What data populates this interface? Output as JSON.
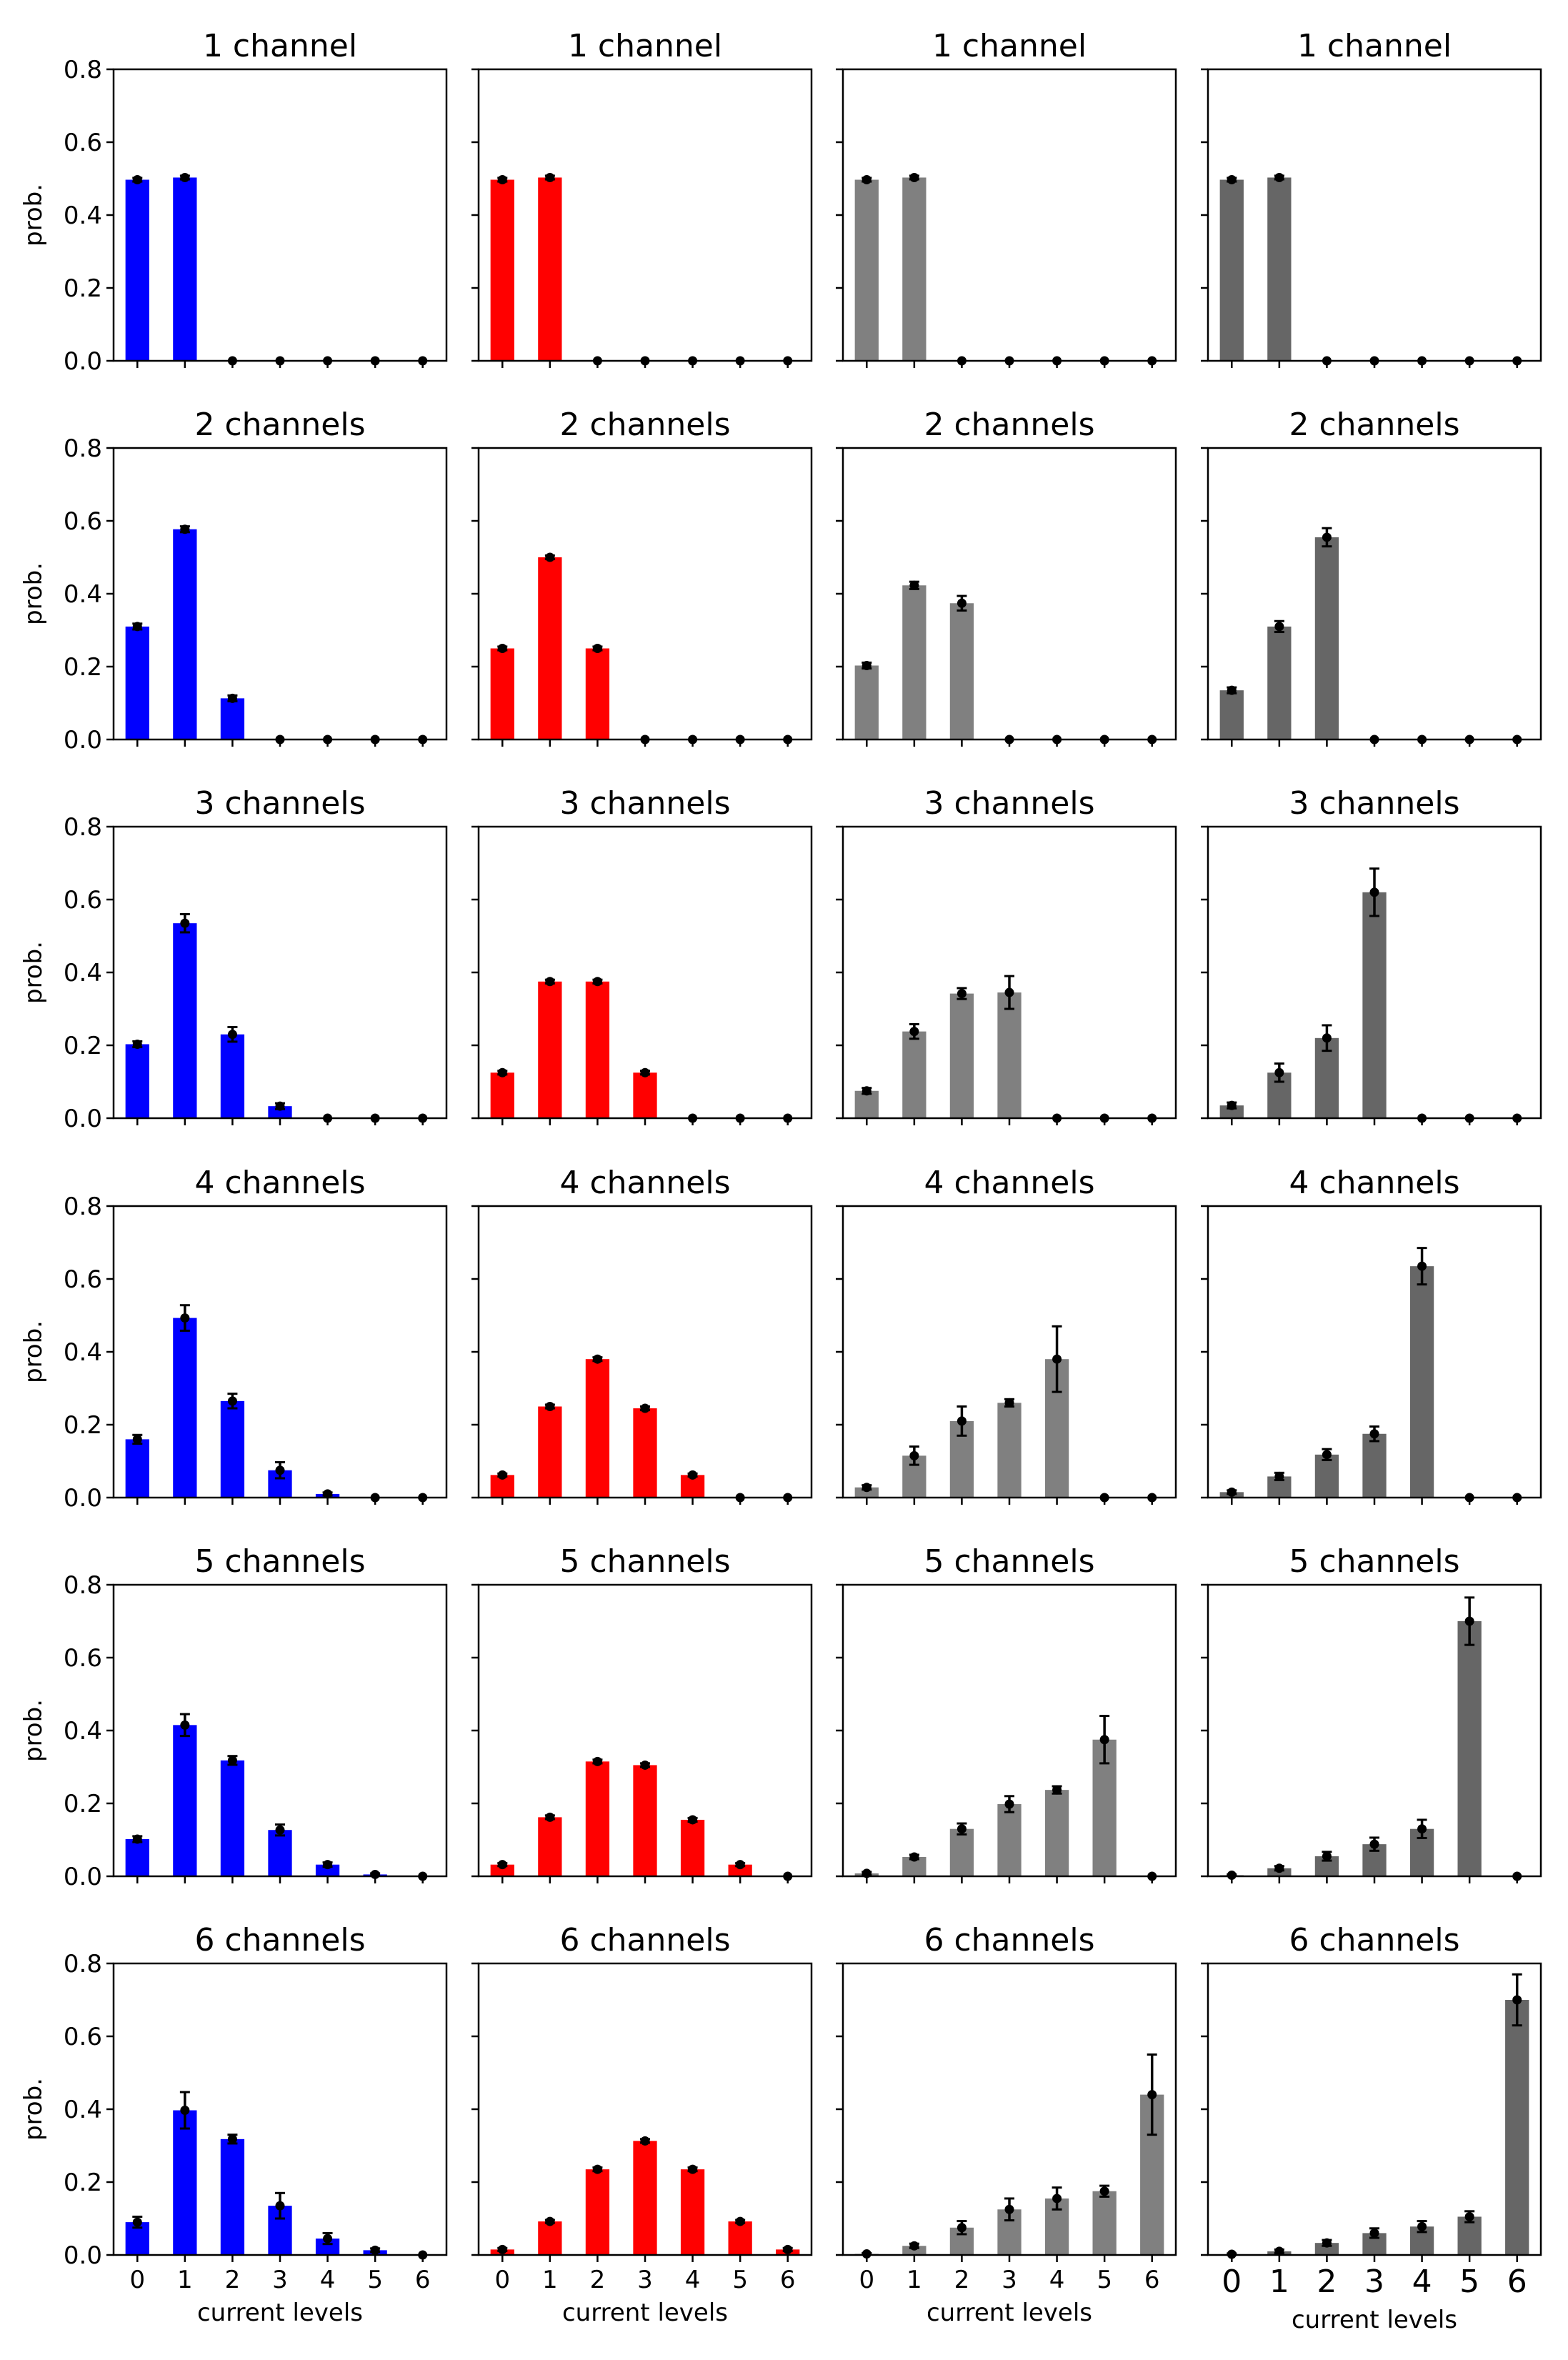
{
  "chart_data": {
    "type": "bar",
    "xlabel": "current levels",
    "ylabel": "prob.",
    "ylim": [
      0,
      0.8
    ],
    "yticks": [
      "0.0",
      "0.2",
      "0.4",
      "0.6",
      "0.8"
    ],
    "xticks": [
      "0",
      "1",
      "2",
      "3",
      "4",
      "5",
      "6"
    ],
    "categories": [
      0,
      1,
      2,
      3,
      4,
      5,
      6
    ],
    "column_colors": [
      "#0000ff",
      "#ff0000",
      "#808080",
      "#666666"
    ],
    "titles": [
      "1 channel",
      "2 channels",
      "3 channels",
      "4 channels",
      "5 channels",
      "6 channels"
    ],
    "panels": [
      [
        {
          "values": [
            0.497,
            0.503,
            0,
            0,
            0,
            0,
            0
          ],
          "err": [
            0.005,
            0.005,
            0,
            0,
            0,
            0,
            0
          ]
        },
        {
          "values": [
            0.497,
            0.503,
            0,
            0,
            0,
            0,
            0
          ],
          "err": [
            0.005,
            0.005,
            0,
            0,
            0,
            0,
            0
          ]
        },
        {
          "values": [
            0.497,
            0.503,
            0,
            0,
            0,
            0,
            0
          ],
          "err": [
            0.005,
            0.005,
            0,
            0,
            0,
            0,
            0
          ]
        },
        {
          "values": [
            0.497,
            0.503,
            0,
            0,
            0,
            0,
            0
          ],
          "err": [
            0.005,
            0.005,
            0,
            0,
            0,
            0,
            0
          ]
        }
      ],
      [
        {
          "values": [
            0.31,
            0.577,
            0.113,
            0,
            0,
            0,
            0
          ],
          "err": [
            0.008,
            0.008,
            0.008,
            0,
            0,
            0,
            0
          ]
        },
        {
          "values": [
            0.25,
            0.5,
            0.25,
            0,
            0,
            0,
            0
          ],
          "err": [
            0.005,
            0.005,
            0.005,
            0,
            0,
            0,
            0
          ]
        },
        {
          "values": [
            0.203,
            0.423,
            0.374,
            0,
            0,
            0,
            0
          ],
          "err": [
            0.008,
            0.01,
            0.02,
            0,
            0,
            0,
            0
          ]
        },
        {
          "values": [
            0.135,
            0.31,
            0.555,
            0,
            0,
            0,
            0
          ],
          "err": [
            0.008,
            0.015,
            0.025,
            0,
            0,
            0,
            0
          ]
        }
      ],
      [
        {
          "values": [
            0.203,
            0.535,
            0.23,
            0.033,
            0,
            0,
            0
          ],
          "err": [
            0.008,
            0.025,
            0.02,
            0.008,
            0,
            0,
            0
          ]
        },
        {
          "values": [
            0.125,
            0.375,
            0.375,
            0.125,
            0,
            0,
            0
          ],
          "err": [
            0.005,
            0.005,
            0.005,
            0.005,
            0,
            0,
            0
          ]
        },
        {
          "values": [
            0.075,
            0.238,
            0.342,
            0.345,
            0,
            0,
            0
          ],
          "err": [
            0.008,
            0.02,
            0.015,
            0.045,
            0,
            0,
            0
          ]
        },
        {
          "values": [
            0.035,
            0.125,
            0.22,
            0.62,
            0,
            0,
            0
          ],
          "err": [
            0.008,
            0.025,
            0.035,
            0.065,
            0,
            0,
            0
          ]
        }
      ],
      [
        {
          "values": [
            0.16,
            0.493,
            0.265,
            0.075,
            0.01,
            0,
            0
          ],
          "err": [
            0.012,
            0.035,
            0.02,
            0.022,
            0.004,
            0,
            0
          ]
        },
        {
          "values": [
            0.062,
            0.25,
            0.38,
            0.245,
            0.062,
            0,
            0
          ],
          "err": [
            0.004,
            0.005,
            0.005,
            0.005,
            0.004,
            0,
            0
          ]
        },
        {
          "values": [
            0.028,
            0.115,
            0.21,
            0.26,
            0.38,
            0,
            0
          ],
          "err": [
            0.006,
            0.025,
            0.04,
            0.01,
            0.09,
            0,
            0
          ]
        },
        {
          "values": [
            0.015,
            0.058,
            0.118,
            0.175,
            0.635,
            0,
            0
          ],
          "err": [
            0.005,
            0.01,
            0.015,
            0.02,
            0.05,
            0,
            0
          ]
        }
      ],
      [
        {
          "values": [
            0.102,
            0.415,
            0.318,
            0.127,
            0.032,
            0.005,
            0
          ],
          "err": [
            0.008,
            0.03,
            0.012,
            0.015,
            0.006,
            0.003,
            0
          ]
        },
        {
          "values": [
            0.032,
            0.162,
            0.315,
            0.305,
            0.155,
            0.032,
            0
          ],
          "err": [
            0.004,
            0.005,
            0.005,
            0.005,
            0.005,
            0.004,
            0
          ]
        },
        {
          "values": [
            0.008,
            0.053,
            0.13,
            0.198,
            0.237,
            0.375,
            0
          ],
          "err": [
            0.004,
            0.006,
            0.015,
            0.022,
            0.01,
            0.065,
            0
          ]
        },
        {
          "values": [
            0.003,
            0.022,
            0.055,
            0.088,
            0.13,
            0.7,
            0
          ],
          "err": [
            0.002,
            0.006,
            0.012,
            0.018,
            0.025,
            0.065,
            0
          ]
        }
      ],
      [
        {
          "values": [
            0.09,
            0.397,
            0.318,
            0.135,
            0.045,
            0.013,
            0
          ],
          "err": [
            0.015,
            0.05,
            0.012,
            0.035,
            0.015,
            0.005,
            0
          ]
        },
        {
          "values": [
            0.015,
            0.092,
            0.235,
            0.313,
            0.235,
            0.092,
            0.015
          ],
          "err": [
            0.004,
            0.004,
            0.005,
            0.005,
            0.005,
            0.004,
            0.004
          ]
        },
        {
          "values": [
            0.003,
            0.025,
            0.075,
            0.125,
            0.155,
            0.175,
            0.44
          ],
          "err": [
            0.002,
            0.006,
            0.018,
            0.03,
            0.03,
            0.015,
            0.11
          ]
        },
        {
          "values": [
            0.002,
            0.01,
            0.033,
            0.06,
            0.078,
            0.105,
            0.7
          ],
          "err": [
            0.002,
            0.005,
            0.008,
            0.013,
            0.015,
            0.015,
            0.07
          ]
        }
      ]
    ]
  }
}
